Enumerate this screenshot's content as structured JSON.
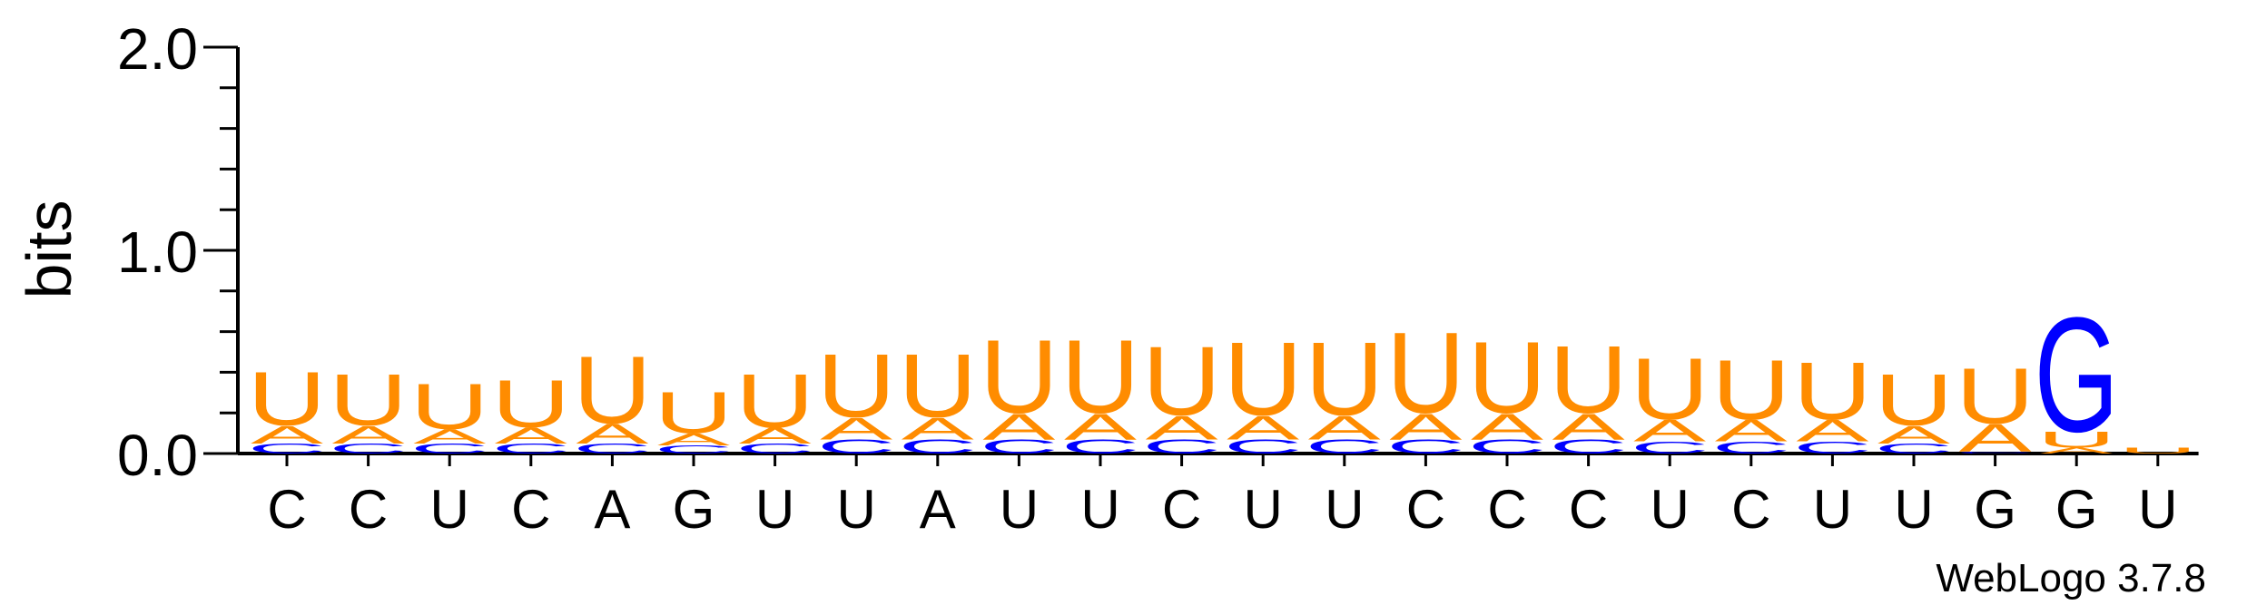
{
  "chart_data": {
    "type": "sequence-logo",
    "ylabel": "bits",
    "ylim": [
      0,
      2.0
    ],
    "yticks": [
      "0.0",
      "1.0",
      "2.0"
    ],
    "x_labels": [
      "C",
      "C",
      "U",
      "C",
      "A",
      "G",
      "U",
      "U",
      "A",
      "U",
      "U",
      "C",
      "U",
      "U",
      "C",
      "C",
      "C",
      "U",
      "C",
      "U",
      "U",
      "G",
      "G",
      "U"
    ],
    "colors": {
      "U": "#ff8c00",
      "A": "#ff8c00",
      "C": "#0000ff",
      "G": "#0000ff"
    },
    "columns": [
      [
        {
          "l": "C",
          "h": 0.05
        },
        {
          "l": "A",
          "h": 0.09
        },
        {
          "l": "U",
          "h": 0.27
        }
      ],
      [
        {
          "l": "C",
          "h": 0.05
        },
        {
          "l": "A",
          "h": 0.09
        },
        {
          "l": "U",
          "h": 0.26
        }
      ],
      [
        {
          "l": "C",
          "h": 0.05
        },
        {
          "l": "A",
          "h": 0.07
        },
        {
          "l": "U",
          "h": 0.23
        }
      ],
      [
        {
          "l": "C",
          "h": 0.05
        },
        {
          "l": "A",
          "h": 0.08
        },
        {
          "l": "U",
          "h": 0.24
        }
      ],
      [
        {
          "l": "C",
          "h": 0.05
        },
        {
          "l": "A",
          "h": 0.1
        },
        {
          "l": "U",
          "h": 0.34
        }
      ],
      [
        {
          "l": "C",
          "h": 0.04
        },
        {
          "l": "A",
          "h": 0.06
        },
        {
          "l": "U",
          "h": 0.21
        }
      ],
      [
        {
          "l": "C",
          "h": 0.05
        },
        {
          "l": "A",
          "h": 0.08
        },
        {
          "l": "U",
          "h": 0.27
        }
      ],
      [
        {
          "l": "C",
          "h": 0.07
        },
        {
          "l": "A",
          "h": 0.11
        },
        {
          "l": "U",
          "h": 0.32
        }
      ],
      [
        {
          "l": "C",
          "h": 0.07
        },
        {
          "l": "A",
          "h": 0.11
        },
        {
          "l": "U",
          "h": 0.32
        }
      ],
      [
        {
          "l": "C",
          "h": 0.07
        },
        {
          "l": "A",
          "h": 0.13
        },
        {
          "l": "U",
          "h": 0.37
        }
      ],
      [
        {
          "l": "C",
          "h": 0.07
        },
        {
          "l": "A",
          "h": 0.13
        },
        {
          "l": "U",
          "h": 0.37
        }
      ],
      [
        {
          "l": "C",
          "h": 0.07
        },
        {
          "l": "A",
          "h": 0.12
        },
        {
          "l": "U",
          "h": 0.35
        }
      ],
      [
        {
          "l": "C",
          "h": 0.07
        },
        {
          "l": "A",
          "h": 0.12
        },
        {
          "l": "U",
          "h": 0.37
        }
      ],
      [
        {
          "l": "C",
          "h": 0.07
        },
        {
          "l": "A",
          "h": 0.12
        },
        {
          "l": "U",
          "h": 0.37
        }
      ],
      [
        {
          "l": "C",
          "h": 0.07
        },
        {
          "l": "A",
          "h": 0.13
        },
        {
          "l": "U",
          "h": 0.41
        }
      ],
      [
        {
          "l": "C",
          "h": 0.07
        },
        {
          "l": "A",
          "h": 0.13
        },
        {
          "l": "U",
          "h": 0.36
        }
      ],
      [
        {
          "l": "C",
          "h": 0.07
        },
        {
          "l": "A",
          "h": 0.13
        },
        {
          "l": "U",
          "h": 0.34
        }
      ],
      [
        {
          "l": "C",
          "h": 0.06
        },
        {
          "l": "A",
          "h": 0.11
        },
        {
          "l": "U",
          "h": 0.31
        }
      ],
      [
        {
          "l": "C",
          "h": 0.06
        },
        {
          "l": "A",
          "h": 0.11
        },
        {
          "l": "U",
          "h": 0.3
        }
      ],
      [
        {
          "l": "C",
          "h": 0.06
        },
        {
          "l": "A",
          "h": 0.11
        },
        {
          "l": "U",
          "h": 0.29
        }
      ],
      [
        {
          "l": "C",
          "h": 0.05
        },
        {
          "l": "A",
          "h": 0.09
        },
        {
          "l": "U",
          "h": 0.26
        }
      ],
      [
        {
          "l": "C",
          "h": 0.01
        },
        {
          "l": "A",
          "h": 0.14
        },
        {
          "l": "U",
          "h": 0.28
        }
      ],
      [
        {
          "l": "A",
          "h": 0.03
        },
        {
          "l": "U",
          "h": 0.08
        },
        {
          "l": "G",
          "h": 0.58
        }
      ],
      [
        {
          "l": "U",
          "h": 0.03
        }
      ]
    ]
  },
  "footer": {
    "credit": "WebLogo 3.7.8"
  }
}
